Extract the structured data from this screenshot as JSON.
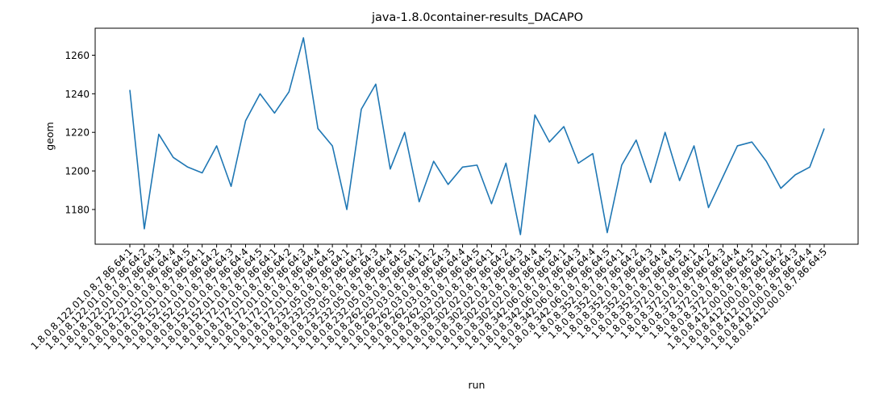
{
  "chart_data": {
    "type": "line",
    "title": "java-1.8.0container-results_DACAPO",
    "xlabel": "run",
    "ylabel": "geom",
    "ylim": [
      1162,
      1274
    ],
    "yticks": [
      1180,
      1200,
      1220,
      1240,
      1260
    ],
    "grid": false,
    "line_color": "#1f77b4",
    "categories": [
      "1.8.0.8.122.01.0.8.7.86.64:1",
      "1.8.0.8.122.01.0.8.7.86.64:2",
      "1.8.0.8.122.01.0.8.7.86.64:3",
      "1.8.0.8.122.01.0.8.7.86.64:4",
      "1.8.0.8.122.01.0.8.7.86.64:5",
      "1.8.0.8.152.01.0.8.7.86.64:1",
      "1.8.0.8.152.01.0.8.7.86.64:2",
      "1.8.0.8.152.01.0.8.7.86.64:3",
      "1.8.0.8.152.01.0.8.7.86.64:4",
      "1.8.0.8.152.01.0.8.7.86.64:5",
      "1.8.0.8.172.01.0.8.7.86.64:1",
      "1.8.0.8.172.01.0.8.7.86.64:2",
      "1.8.0.8.172.01.0.8.7.86.64:3",
      "1.8.0.8.172.01.0.8.7.86.64:4",
      "1.8.0.8.172.01.0.8.7.86.64:5",
      "1.8.0.8.232.05.0.8.7.86.64:1",
      "1.8.0.8.232.05.0.8.7.86.64:2",
      "1.8.0.8.232.05.0.8.7.86.64:3",
      "1.8.0.8.232.05.0.8.7.86.64:4",
      "1.8.0.8.232.05.0.8.7.86.64:5",
      "1.8.0.8.262.03.0.8.7.86.64:1",
      "1.8.0.8.262.03.0.8.7.86.64:2",
      "1.8.0.8.262.03.0.8.7.86.64:3",
      "1.8.0.8.262.03.0.8.7.86.64:4",
      "1.8.0.8.262.03.0.8.7.86.64:5",
      "1.8.0.8.302.02.0.8.7.86.64:1",
      "1.8.0.8.302.02.0.8.7.86.64:2",
      "1.8.0.8.302.02.0.8.7.86.64:3",
      "1.8.0.8.302.02.0.8.7.86.64:4",
      "1.8.0.8.302.02.0.8.7.86.64:5",
      "1.8.0.8.342.06.0.8.7.86.64:1",
      "1.8.0.8.342.06.0.8.7.86.64:3",
      "1.8.0.8.342.06.0.8.7.86.64:4",
      "1.8.0.8.342.06.0.8.7.86.64:5",
      "1.8.0.8.352.0.8.7.86.64:1",
      "1.8.0.8.352.0.8.7.86.64:2",
      "1.8.0.8.352.0.8.7.86.64:3",
      "1.8.0.8.352.0.8.7.86.64:4",
      "1.8.0.8.352.0.8.7.86.64:5",
      "1.8.0.8.372.0.8.7.86.64:1",
      "1.8.0.8.372.0.8.7.86.64:2",
      "1.8.0.8.372.0.8.7.86.64:3",
      "1.8.0.8.372.0.8.7.86.64:4",
      "1.8.0.8.372.0.8.7.86.64:5",
      "1.8.0.8.412.00.0.8.7.86.64:1",
      "1.8.0.8.412.00.0.8.7.86.64:2",
      "1.8.0.8.412.00.0.8.7.86.64:3",
      "1.8.0.8.412.00.0.8.7.86.64:4",
      "1.8.0.8.412.00.0.8.7.86.64:5"
    ],
    "series": [
      {
        "name": "geom",
        "values": [
          1242,
          1170,
          1219,
          1207,
          1202,
          1199,
          1213,
          1192,
          1226,
          1240,
          1230,
          1241,
          1269,
          1222,
          1213,
          1180,
          1232,
          1245,
          1201,
          1220,
          1184,
          1205,
          1193,
          1202,
          1203,
          1183,
          1204,
          1167,
          1229,
          1215,
          1223,
          1204,
          1209,
          1168,
          1203,
          1216,
          1194,
          1220,
          1195,
          1213,
          1181,
          1197,
          1213,
          1215,
          1205,
          1191,
          1198,
          1202,
          1222
        ]
      }
    ]
  }
}
